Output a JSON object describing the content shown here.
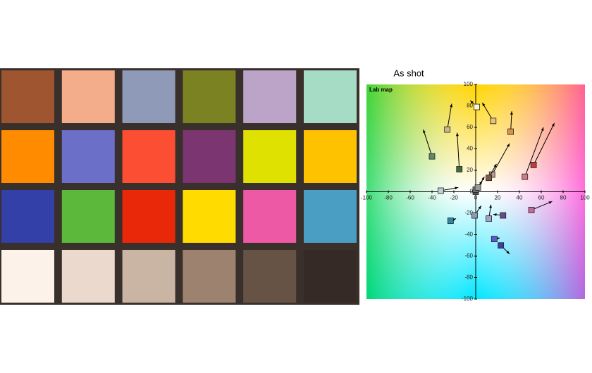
{
  "chart_data": {
    "type": "scatter",
    "title": "As shot",
    "annotation": "Lab map",
    "xlim": [
      -100,
      100
    ],
    "ylim": [
      -100,
      100
    ],
    "xticks": [
      -100,
      -80,
      -60,
      -40,
      -20,
      0,
      20,
      40,
      60,
      80,
      100
    ],
    "yticks": [
      -100,
      -80,
      -60,
      -40,
      -20,
      0,
      20,
      40,
      60,
      80,
      100
    ],
    "x": [
      -26,
      -40,
      -15,
      1,
      16,
      32,
      45,
      53,
      15,
      12,
      -32,
      0,
      0,
      2,
      -1,
      12,
      25,
      51,
      -23,
      17,
      23
    ],
    "y": [
      58,
      33,
      21,
      79,
      66,
      56,
      14,
      25,
      16,
      13,
      1,
      0,
      2,
      4,
      -22,
      -25,
      -22,
      -17,
      -27,
      -44,
      -50
    ],
    "target_x": [
      -22,
      -48,
      -17,
      -5,
      6,
      33,
      62,
      72,
      31,
      19,
      -16,
      4,
      6,
      8,
      5,
      14,
      16,
      70,
      -18,
      22,
      31
    ],
    "target_y": [
      82,
      58,
      55,
      85,
      83,
      75,
      60,
      64,
      45,
      26,
      4,
      6,
      10,
      14,
      -13,
      -12,
      -21,
      -9,
      -25,
      -43,
      -58
    ],
    "colors": [
      "#c9b88e",
      "#5a8a66",
      "#3e6b3a",
      "#fdf2c8",
      "#e8c27a",
      "#d8924a",
      "#d27a86",
      "#c23a3a",
      "#b89a8a",
      "#7a5a4a",
      "#bfcfd4",
      "#555555",
      "#777777",
      "#999999",
      "#8a9ab8",
      "#a0a0c8",
      "#6a4a8a",
      "#c46a9a",
      "#2a8aa0",
      "#5a5acf",
      "#3a40a8"
    ]
  }
}
